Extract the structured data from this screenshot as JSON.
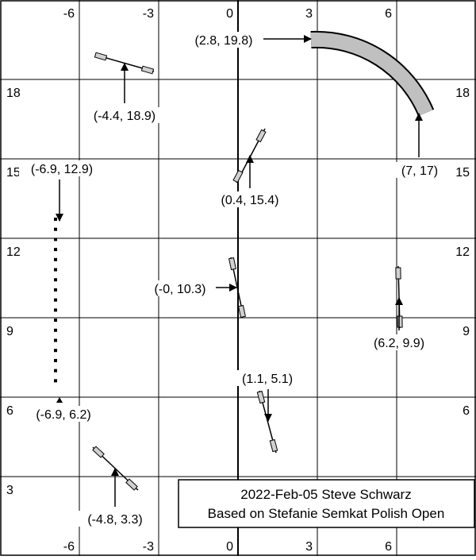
{
  "axes": {
    "x_ticks": [
      {
        "value": -6,
        "text": "-6"
      },
      {
        "value": -3,
        "text": "-3"
      },
      {
        "value": 0,
        "text": "0"
      },
      {
        "value": 3,
        "text": "3"
      },
      {
        "value": 6,
        "text": "6"
      }
    ],
    "y_ticks": [
      {
        "value": 3,
        "text": "3"
      },
      {
        "value": 6,
        "text": "6"
      },
      {
        "value": 9,
        "text": "9"
      },
      {
        "value": 12,
        "text": "12"
      },
      {
        "value": 15,
        "text": "15"
      },
      {
        "value": 18,
        "text": "18"
      }
    ],
    "grid": true,
    "xlim": [
      -9,
      9
    ],
    "ylim": [
      0,
      21
    ]
  },
  "elements": [
    {
      "type": "wheel",
      "label": "(-4.4, 18.9)",
      "x": -4.4,
      "y": 18.9
    },
    {
      "type": "wheel",
      "label": "(0.4, 15.4)",
      "x": 0.4,
      "y": 15.4
    },
    {
      "type": "wheel",
      "label": "(-0, 10.3)",
      "x": 0.0,
      "y": 10.3
    },
    {
      "type": "wheel",
      "label": "(6.2, 9.9)",
      "x": 6.2,
      "y": 9.9
    },
    {
      "type": "wheel",
      "label": "(1.1, 5.1)",
      "x": 1.1,
      "y": 5.1
    },
    {
      "type": "wheel",
      "label": "(-4.8, 3.3)",
      "x": -4.8,
      "y": 3.3
    },
    {
      "type": "tunnel",
      "start_label": "(2.8, 19.8)",
      "end_label": "(7, 17)",
      "start": [
        2.8,
        19.8
      ],
      "end": [
        7.0,
        17.0
      ]
    },
    {
      "type": "dotted-line",
      "start_label": "(-6.9, 12.9)",
      "end_label": "(-6.9, 6.2)",
      "start": [
        -6.9,
        12.9
      ],
      "end": [
        -6.9,
        6.2
      ]
    }
  ],
  "credit": {
    "line1": "2022-Feb-05 Steve Schwarz",
    "line2": "Based on Stefanie Semkat Polish Open"
  },
  "colors": {
    "grid": "#000000",
    "part_fill": "#d0d0d0",
    "tunnel_fill": "#c0c0c0"
  }
}
